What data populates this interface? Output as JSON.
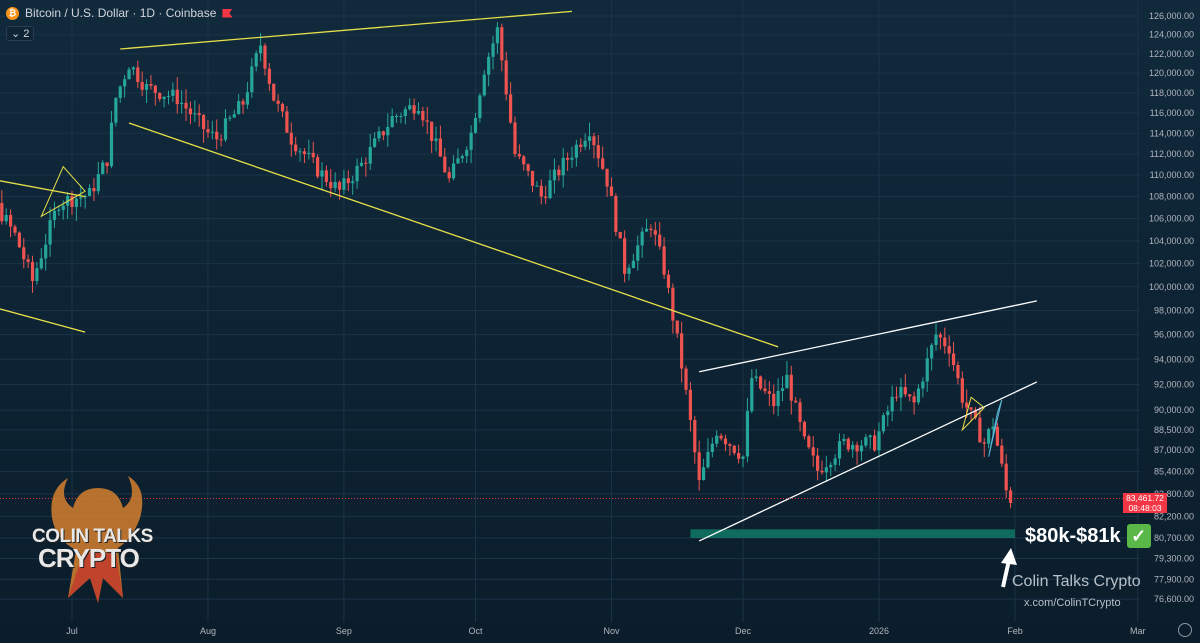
{
  "header": {
    "symbol_icon": "bitcoin-icon",
    "title": "Bitcoin / U.S. Dollar · 1D · Coinbase",
    "indicator_count": "2"
  },
  "price_tag": {
    "price": "83,461.72",
    "countdown": "08:48:03"
  },
  "annotation": {
    "target": "$80k-$81k",
    "check_icon": "check-mark-icon"
  },
  "watermark": {
    "name": "Colin Talks Crypto",
    "handle": "x.com/ColinTCrypto"
  },
  "logo": {
    "line1": "COLIN TALKS",
    "line2": "CRYPTO"
  },
  "colors": {
    "up": "#26a69a",
    "down": "#ef5350",
    "trend": "#e8e04a",
    "wedge": "#ffffff",
    "zone": "#0f6b5e",
    "price_line": "#f23645"
  },
  "chart_data": {
    "type": "candlestick",
    "title": "Bitcoin / U.S. Dollar · 1D · Coinbase",
    "x_tick_labels": [
      "Jul",
      "Aug",
      "Sep",
      "Oct",
      "Nov",
      "Dec",
      "2026",
      "Feb",
      "Mar"
    ],
    "y_tick_labels": [
      "126,000.00",
      "124,000.00",
      "122,000.00",
      "120,000.00",
      "118,000.00",
      "116,000.00",
      "114,000.00",
      "112,000.00",
      "110,000.00",
      "108,000.00",
      "106,000.00",
      "104,000.00",
      "102,000.00",
      "100,000.00",
      "98,000.00",
      "96,000.00",
      "94,000.00",
      "92,000.00",
      "90,000.00",
      "88,500.00",
      "87,000.00",
      "85,400.00",
      "83,800.00",
      "82,200.00",
      "80,700.00",
      "79,300.00",
      "77,900.00",
      "76,600.00"
    ],
    "y_tick_values": [
      126000,
      124000,
      122000,
      120000,
      118000,
      116000,
      114000,
      112000,
      110000,
      108000,
      106000,
      104000,
      102000,
      100000,
      98000,
      96000,
      94000,
      92000,
      90000,
      88500,
      87000,
      85400,
      83800,
      82200,
      80700,
      79300,
      77900,
      76600
    ],
    "log_scale": true,
    "grid": true,
    "date_range": [
      "2025-06-01",
      "2026-01-31"
    ],
    "close_path": [
      [
        "2025-06-01",
        105000
      ],
      [
        "2025-06-10",
        109500
      ],
      [
        "2025-06-18",
        104500
      ],
      [
        "2025-06-22",
        100500
      ],
      [
        "2025-06-28",
        107500
      ],
      [
        "2025-07-05",
        108200
      ],
      [
        "2025-07-09",
        111500
      ],
      [
        "2025-07-11",
        117500
      ],
      [
        "2025-07-14",
        121000
      ],
      [
        "2025-07-18",
        118500
      ],
      [
        "2025-07-25",
        117500
      ],
      [
        "2025-08-01",
        114000
      ],
      [
        "2025-08-03",
        113500
      ],
      [
        "2025-08-09",
        117000
      ],
      [
        "2025-08-13",
        123000
      ],
      [
        "2025-08-16",
        117500
      ],
      [
        "2025-08-20",
        113500
      ],
      [
        "2025-08-26",
        110500
      ],
      [
        "2025-08-31",
        108500
      ],
      [
        "2025-09-05",
        111000
      ],
      [
        "2025-09-12",
        115500
      ],
      [
        "2025-09-18",
        117000
      ],
      [
        "2025-09-25",
        109500
      ],
      [
        "2025-09-30",
        114000
      ],
      [
        "2025-10-03",
        120500
      ],
      [
        "2025-10-06",
        124500
      ],
      [
        "2025-10-10",
        112000
      ],
      [
        "2025-10-16",
        108000
      ],
      [
        "2025-10-21",
        111000
      ],
      [
        "2025-10-27",
        114500
      ],
      [
        "2025-10-31",
        109500
      ],
      [
        "2025-11-04",
        101500
      ],
      [
        "2025-11-10",
        105500
      ],
      [
        "2025-11-13",
        101500
      ],
      [
        "2025-11-17",
        93500
      ],
      [
        "2025-11-21",
        84500
      ],
      [
        "2025-11-25",
        88500
      ],
      [
        "2025-12-01",
        86500
      ],
      [
        "2025-12-03",
        92500
      ],
      [
        "2025-12-08",
        90500
      ],
      [
        "2025-12-11",
        92500
      ],
      [
        "2025-12-15",
        87500
      ],
      [
        "2025-12-18",
        85500
      ],
      [
        "2025-12-24",
        87500
      ],
      [
        "2025-12-31",
        87500
      ],
      [
        "2026-01-05",
        91500
      ],
      [
        "2026-01-09",
        90500
      ],
      [
        "2026-01-14",
        96000
      ],
      [
        "2026-01-17",
        95000
      ],
      [
        "2026-01-20",
        91000
      ],
      [
        "2026-01-22",
        89500
      ],
      [
        "2026-01-25",
        87500
      ],
      [
        "2026-01-27",
        89000
      ],
      [
        "2026-01-30",
        84000
      ],
      [
        "2026-01-31",
        83460
      ]
    ],
    "last_price": 83461.72,
    "support_zone": [
      80700,
      81300
    ],
    "support_zone_label": "$80k-$81k",
    "trend_lines": [
      {
        "color": "#e8e04a",
        "points": [
          [
            "2025-07-12",
            122500
          ],
          [
            "2025-10-23",
            126500
          ]
        ]
      },
      {
        "color": "#e8e04a",
        "points": [
          [
            "2025-07-14",
            115000
          ],
          [
            "2025-12-09",
            95000
          ]
        ]
      },
      {
        "color": "#e8e04a",
        "points": [
          [
            "2025-06-01",
            110500
          ],
          [
            "2025-07-04",
            108000
          ]
        ]
      },
      {
        "color": "#e8e04a",
        "points": [
          [
            "2025-06-01",
            99500
          ],
          [
            "2025-07-04",
            96200
          ]
        ]
      },
      {
        "color": "#ffffff",
        "points": [
          [
            "2025-11-21",
            93000
          ],
          [
            "2026-02-06",
            98800
          ]
        ]
      },
      {
        "color": "#ffffff",
        "points": [
          [
            "2025-11-21",
            80500
          ],
          [
            "2026-02-06",
            92200
          ]
        ]
      }
    ]
  }
}
